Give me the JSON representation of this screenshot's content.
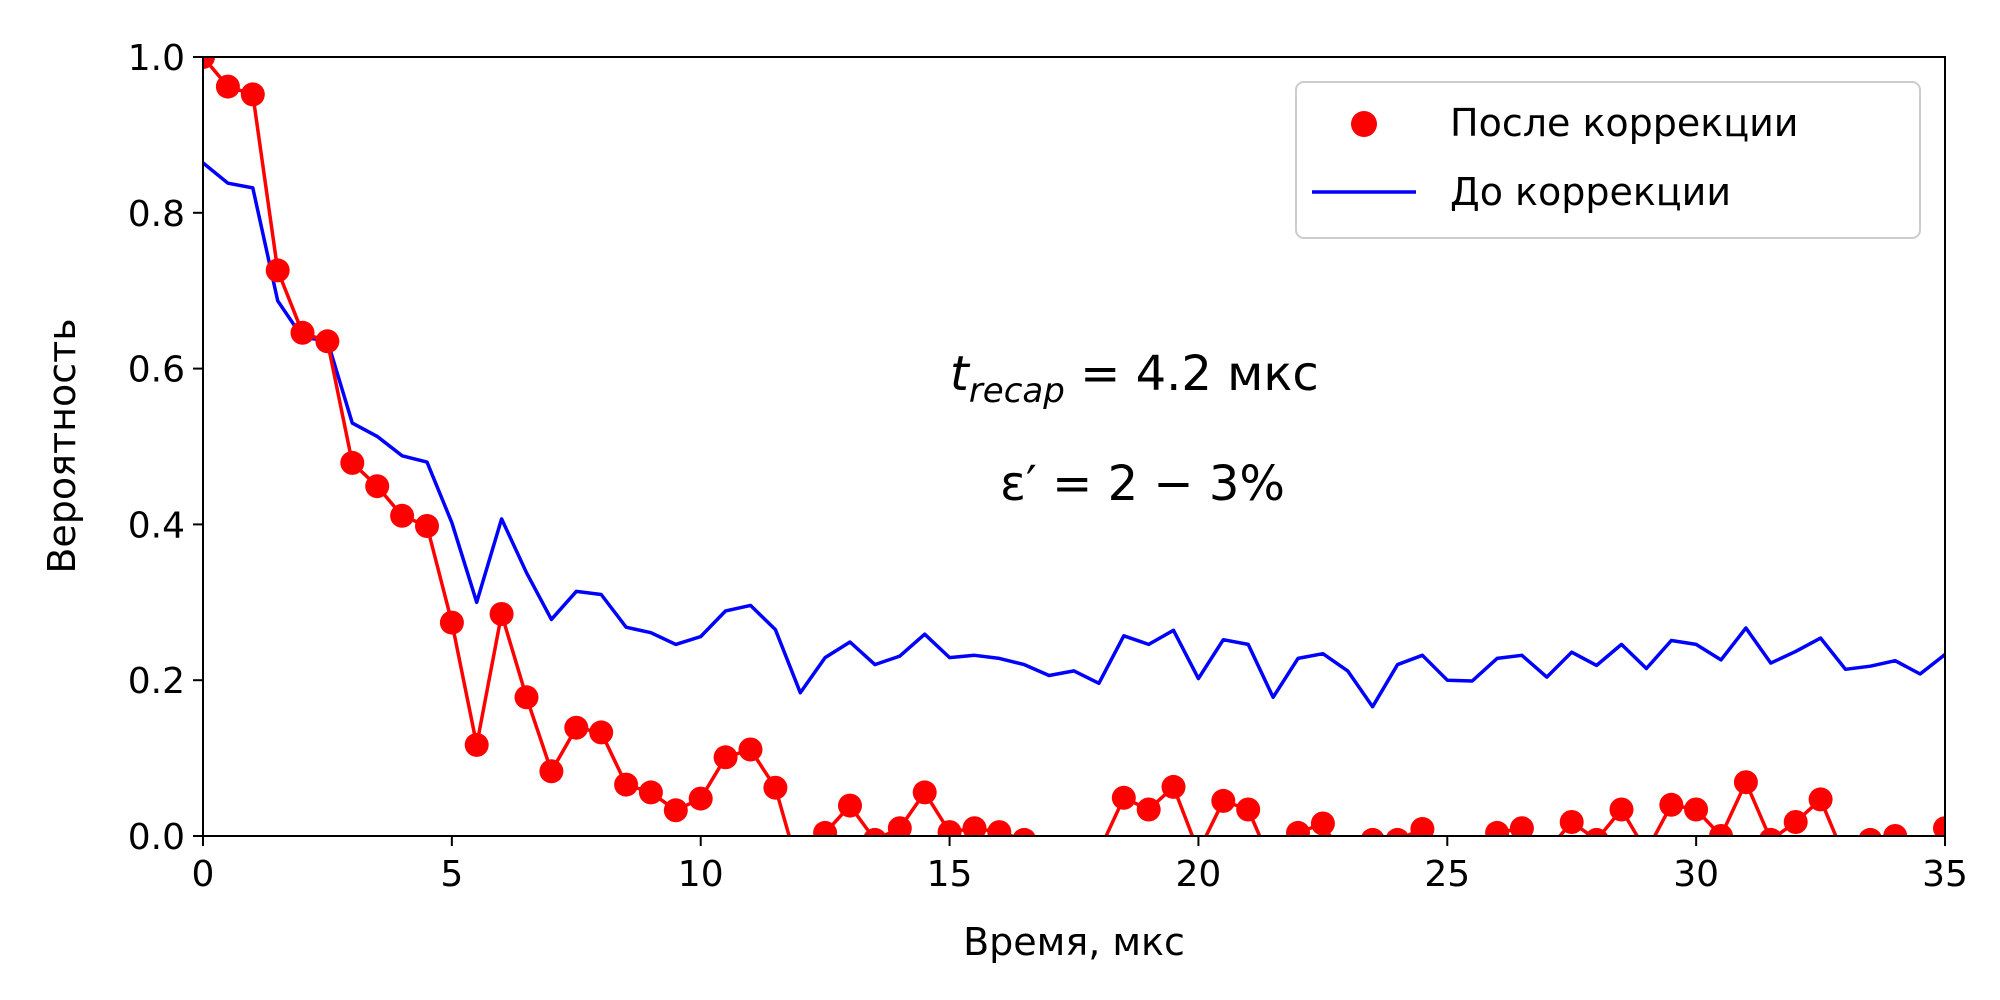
{
  "chart_data": {
    "type": "line",
    "xlabel": "Время, мкс",
    "ylabel": "Вероятность",
    "xlim": [
      0,
      35
    ],
    "ylim": [
      0,
      1
    ],
    "xticks": [
      "0",
      "5",
      "10",
      "15",
      "20",
      "25",
      "30",
      "35"
    ],
    "yticks": [
      "0.0",
      "0.2",
      "0.4",
      "0.6",
      "0.8",
      "1.0"
    ],
    "grid": false,
    "legend_position": "top-right",
    "annotations": {
      "line1_var": "t",
      "line1_sub": "recap",
      "line1_rest": " = 4.2 мкс",
      "line2": "ε′ = 2 − 3%"
    },
    "series": [
      {
        "name": "После коррекции",
        "style": "line+markers",
        "color": "#ff0000",
        "x": [
          0,
          0.5,
          1,
          1.5,
          2,
          2.5,
          3,
          3.5,
          4,
          4.5,
          5,
          5.5,
          6,
          6.5,
          7,
          7.5,
          8,
          8.5,
          9,
          9.5,
          10,
          10.5,
          11,
          11.5,
          12,
          12.5,
          13,
          13.5,
          14,
          14.5,
          15,
          15.5,
          16,
          16.5,
          17,
          17.5,
          18,
          18.5,
          19,
          19.5,
          20,
          20.5,
          21,
          21.5,
          22,
          22.5,
          23,
          23.5,
          24,
          24.5,
          25,
          25.5,
          26,
          26.5,
          27,
          27.5,
          28,
          28.5,
          29,
          29.5,
          30,
          30.5,
          31,
          31.5,
          32,
          32.5,
          33,
          33.5,
          34,
          34.5,
          35
        ],
        "y": [
          1.0,
          0.962,
          0.952,
          0.726,
          0.646,
          0.635,
          0.479,
          0.449,
          0.411,
          0.398,
          0.274,
          0.117,
          0.285,
          0.178,
          0.083,
          0.139,
          0.133,
          0.066,
          0.056,
          0.033,
          0.048,
          0.101,
          0.111,
          0.062,
          -0.05,
          0.004,
          0.039,
          -0.005,
          0.01,
          0.056,
          0.005,
          0.01,
          0.005,
          -0.005,
          -0.03,
          -0.04,
          -0.02,
          0.049,
          0.034,
          0.063,
          -0.02,
          0.045,
          0.034,
          -0.04,
          0.004,
          0.016,
          -0.04,
          -0.005,
          -0.005,
          0.009,
          -0.02,
          -0.03,
          0.004,
          0.01,
          -0.02,
          0.018,
          -0.005,
          0.034,
          -0.02,
          0.04,
          0.034,
          0.0,
          0.069,
          -0.005,
          0.018,
          0.047,
          -0.03,
          -0.005,
          0.0,
          -0.04,
          0.01
        ]
      },
      {
        "name": "До коррекции",
        "style": "line",
        "color": "#0000ff",
        "x": [
          0,
          0.5,
          1,
          1.5,
          2,
          2.5,
          3,
          3.5,
          4,
          4.5,
          5,
          5.5,
          6,
          6.5,
          7,
          7.5,
          8,
          8.5,
          9,
          9.5,
          10,
          10.5,
          11,
          11.5,
          12,
          12.5,
          13,
          13.5,
          14,
          14.5,
          15,
          15.5,
          16,
          16.5,
          17,
          17.5,
          18,
          18.5,
          19,
          19.5,
          20,
          20.5,
          21,
          21.5,
          22,
          22.5,
          23,
          23.5,
          24,
          24.5,
          25,
          25.5,
          26,
          26.5,
          27,
          27.5,
          28,
          28.5,
          29,
          29.5,
          30,
          30.5,
          31,
          31.5,
          32,
          32.5,
          33,
          33.5,
          34,
          34.5,
          35
        ],
        "y": [
          0.864,
          0.838,
          0.832,
          0.687,
          0.64,
          0.636,
          0.53,
          0.513,
          0.488,
          0.48,
          0.402,
          0.3,
          0.407,
          0.338,
          0.278,
          0.314,
          0.31,
          0.268,
          0.261,
          0.246,
          0.256,
          0.289,
          0.296,
          0.265,
          0.184,
          0.229,
          0.249,
          0.22,
          0.231,
          0.259,
          0.229,
          0.232,
          0.228,
          0.22,
          0.206,
          0.212,
          0.196,
          0.257,
          0.246,
          0.264,
          0.202,
          0.252,
          0.246,
          0.178,
          0.228,
          0.234,
          0.212,
          0.166,
          0.22,
          0.232,
          0.2,
          0.199,
          0.228,
          0.232,
          0.204,
          0.236,
          0.219,
          0.246,
          0.215,
          0.251,
          0.246,
          0.226,
          0.267,
          0.222,
          0.237,
          0.254,
          0.214,
          0.218,
          0.225,
          0.208,
          0.233
        ]
      }
    ]
  }
}
